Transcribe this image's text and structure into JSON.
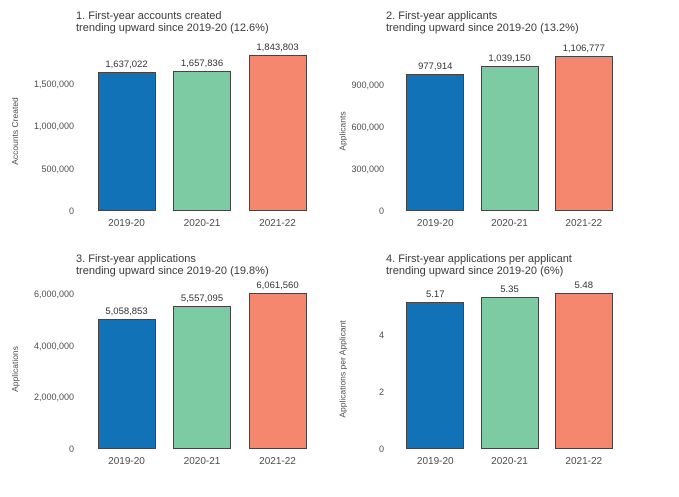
{
  "figure": {
    "background": "#ffffff"
  },
  "colors": {
    "bar_colors": [
      "#1172B8",
      "#7CCBA2",
      "#F5876F"
    ],
    "bar_border": "#444444",
    "title_color": "#3b3b3b",
    "tick_color": "#4d4d4d",
    "value_label_color": "#333333"
  },
  "chart_data": [
    {
      "type": "bar",
      "title_line1": "1. First-year accounts created",
      "title_line2": "trending upward since 2019-20 (12.6%)",
      "ylabel": "Accounts Created",
      "xlabel": "",
      "categories": [
        "2019-20",
        "2020-21",
        "2021-22"
      ],
      "values": [
        1637022,
        1657836,
        1843803
      ],
      "value_labels": [
        "1,637,022",
        "1,657,836",
        "1,843,803"
      ],
      "yticks": [
        0,
        500000,
        1000000,
        1500000
      ],
      "ytick_labels": [
        "0",
        "500,000",
        "1,000,000",
        "1,500,000"
      ],
      "ylim": [
        0,
        1900000
      ],
      "grid": false,
      "legend": "none"
    },
    {
      "type": "bar",
      "title_line1": "2. First-year applicants",
      "title_line2": "trending upward since 2019-20 (13.2%)",
      "ylabel": "Applicants",
      "xlabel": "",
      "categories": [
        "2019-20",
        "2020-21",
        "2021-22"
      ],
      "values": [
        977914,
        1039150,
        1106777
      ],
      "value_labels": [
        "977,914",
        "1,039,150",
        "1,106,777"
      ],
      "yticks": [
        0,
        300000,
        600000,
        900000
      ],
      "ytick_labels": [
        "0",
        "300,000",
        "600,000",
        "900,000"
      ],
      "ylim": [
        0,
        1150000
      ],
      "grid": false,
      "legend": "none"
    },
    {
      "type": "bar",
      "title_line1": "3. First-year applications",
      "title_line2": "trending upward since 2019-20 (19.8%)",
      "ylabel": "Applications",
      "xlabel": "",
      "categories": [
        "2019-20",
        "2020-21",
        "2021-22"
      ],
      "values": [
        5058853,
        5557095,
        6061560
      ],
      "value_labels": [
        "5,058,853",
        "5,557,095",
        "6,061,560"
      ],
      "yticks": [
        0,
        2000000,
        4000000,
        6000000
      ],
      "ytick_labels": [
        "0",
        "2,000,000",
        "4,000,000",
        "6,000,000"
      ],
      "ylim": [
        0,
        6250000
      ],
      "grid": false,
      "legend": "none"
    },
    {
      "type": "bar",
      "title_line1": "4. First-year applications per applicant",
      "title_line2": "trending upward since 2019-20 (6%)",
      "ylabel": "Applications per Applicant",
      "xlabel": "",
      "categories": [
        "2019-20",
        "2020-21",
        "2021-22"
      ],
      "values": [
        5.17,
        5.35,
        5.48
      ],
      "value_labels": [
        "5.17",
        "5.35",
        "5.48"
      ],
      "yticks": [
        0,
        2,
        4
      ],
      "ytick_labels": [
        "0",
        "2",
        "4"
      ],
      "ylim": [
        0,
        5.65
      ],
      "grid": false,
      "legend": "none"
    }
  ]
}
